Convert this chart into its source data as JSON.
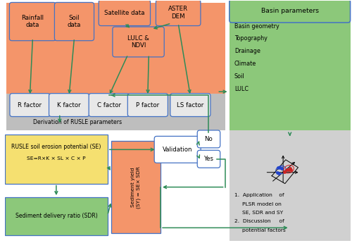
{
  "fig_width": 5.0,
  "fig_height": 3.45,
  "dpi": 100,
  "bg_color": "#ffffff",
  "salmon_bg": "#F4956A",
  "gray_bg": "#BEBEBE",
  "yellow_bg": "#F5E070",
  "green_bg": "#8CC87A",
  "sdr_green": "#8CC87A",
  "light_gray_bg": "#D0D0D0",
  "blue_border": "#4472C4",
  "green_arrow": "#2E8B57",
  "box_fill": "#E8E8E8",
  "sy_fill": "#F4956A",
  "basin_items": [
    "Basin geometry",
    "Topography",
    "Drainage",
    "Climate",
    "Soil",
    "LULC"
  ]
}
